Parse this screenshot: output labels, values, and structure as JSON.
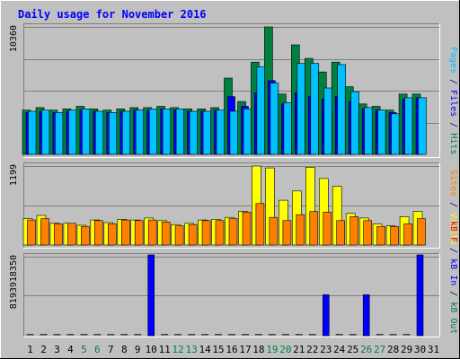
{
  "chart_data": {
    "type": "bar",
    "title": "Daily usage for November 2016",
    "days": [
      "1",
      "2",
      "3",
      "4",
      "5",
      "6",
      "7",
      "8",
      "9",
      "10",
      "11",
      "12",
      "13",
      "14",
      "15",
      "16",
      "17",
      "18",
      "19",
      "20",
      "21",
      "22",
      "23",
      "24",
      "25",
      "26",
      "27",
      "28",
      "29",
      "30",
      "31"
    ],
    "weekend_days": [
      "5",
      "6",
      "12",
      "13",
      "19",
      "20",
      "26",
      "27"
    ],
    "panels": [
      {
        "name": "hits-files-pages",
        "max_label": "10360",
        "max": 10360,
        "legend": [
          {
            "text": "Pages",
            "color": "#00C0FF"
          },
          {
            "text": " / ",
            "color": "#000080"
          },
          {
            "text": "Files",
            "color": "#0000FF"
          },
          {
            "text": " / ",
            "color": "#000080"
          },
          {
            "text": "Hits",
            "color": "#008040"
          }
        ],
        "series": [
          {
            "name": "Hits",
            "color": "#008040",
            "values": [
              3600,
              3800,
              3600,
              3700,
              3900,
              3700,
              3600,
              3700,
              3800,
              3800,
              3900,
              3800,
              3700,
              3700,
              3800,
              6200,
              4300,
              7500,
              10360,
              4900,
              8900,
              7800,
              6700,
              7500,
              5500,
              4100,
              3900,
              3600,
              4900,
              4900,
              0
            ]
          },
          {
            "name": "Files",
            "color": "#0000FF",
            "values": [
              3400,
              3500,
              3400,
              3500,
              3600,
              3500,
              3400,
              3500,
              3600,
              3600,
              3700,
              3600,
              3500,
              3500,
              3600,
              4700,
              3900,
              5000,
              6000,
              4100,
              5000,
              4700,
              4500,
              4700,
              4300,
              3700,
              3600,
              3400,
              4500,
              4600,
              0
            ]
          },
          {
            "name": "Pages",
            "color": "#00C0FF",
            "values": [
              3500,
              3600,
              3400,
              3600,
              3700,
              3500,
              3400,
              3500,
              3600,
              3700,
              3700,
              3700,
              3500,
              3500,
              3600,
              3500,
              3700,
              7100,
              5800,
              4200,
              7400,
              7400,
              5400,
              7300,
              5100,
              3800,
              3600,
              3300,
              4600,
              4600,
              0
            ]
          }
        ]
      },
      {
        "name": "sites-visits",
        "max_label": "1199",
        "max": 1199,
        "legend": [
          {
            "text": "Sites",
            "color": "#FF8000"
          },
          {
            "text": " / ",
            "color": "#000080"
          },
          {
            "text": "Visits",
            "color": "#FFFF00"
          }
        ],
        "series": [
          {
            "name": "Visits",
            "color": "#FFFF00",
            "values": [
              400,
              450,
              330,
              330,
              300,
              380,
              340,
              390,
              380,
              410,
              370,
              310,
              330,
              380,
              390,
              420,
              510,
              1199,
              1170,
              680,
              820,
              1180,
              1010,
              890,
              480,
              410,
              320,
              290,
              430,
              510,
              0
            ]
          },
          {
            "name": "Sites",
            "color": "#FF8000",
            "values": [
              380,
              400,
              320,
              330,
              280,
              370,
              320,
              380,
              370,
              380,
              350,
              290,
              310,
              370,
              370,
              400,
              500,
              630,
              420,
              370,
              460,
              510,
              500,
              370,
              430,
              370,
              280,
              280,
              320,
              400,
              0
            ]
          }
        ]
      },
      {
        "name": "kbytes",
        "max_label": "8193918350",
        "max": 8193918350,
        "legend": [
          {
            "text": "kB F",
            "color": "#FF0000"
          },
          {
            "text": " / ",
            "color": "#000080"
          },
          {
            "text": "kB In",
            "color": "#0000FF"
          },
          {
            "text": " / ",
            "color": "#000080"
          },
          {
            "text": "kB Out",
            "color": "#008040"
          }
        ],
        "series": [
          {
            "name": "kB In",
            "color": "#0000FF",
            "values": [
              0,
              0,
              0,
              0,
              0,
              0,
              0,
              0,
              0,
              8193918350,
              0,
              0,
              0,
              0,
              0,
              0,
              0,
              0,
              0,
              0,
              0,
              0,
              4150000000,
              0,
              0,
              4150000000,
              0,
              0,
              0,
              8193918350,
              0
            ]
          }
        ]
      }
    ]
  }
}
